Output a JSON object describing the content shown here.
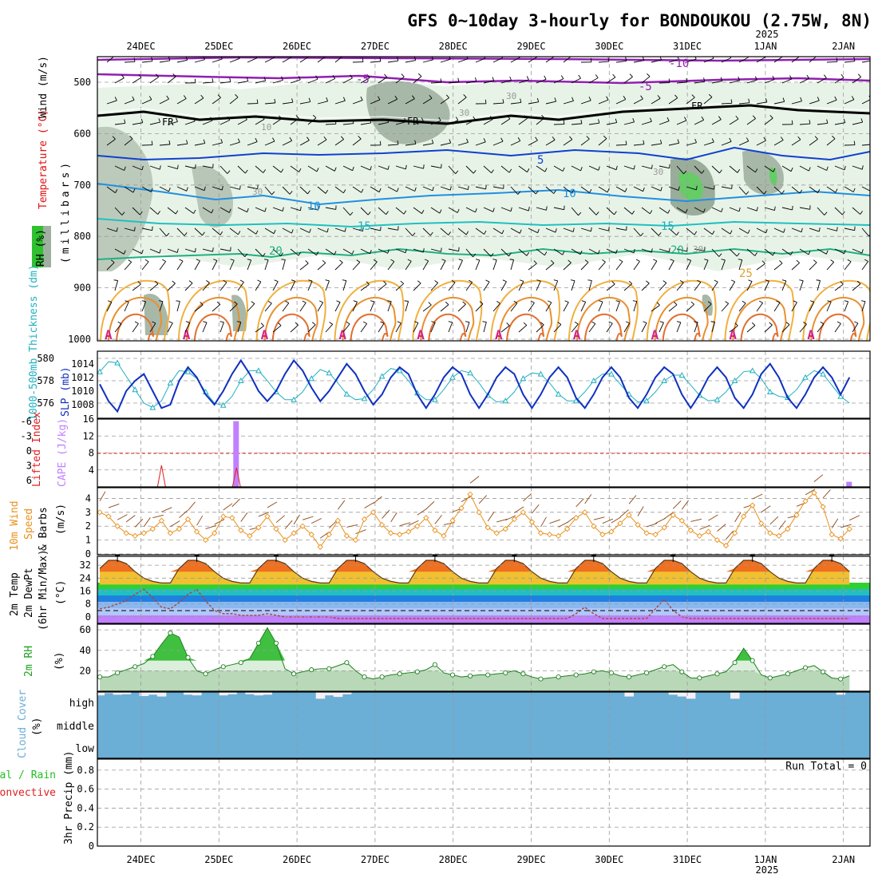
{
  "title": "GFS 0~10day 3-hourly for BONDOUKOU (2.75W, 8N)",
  "dates": [
    "24DEC",
    "25DEC",
    "26DEC",
    "27DEC",
    "28DEC",
    "29DEC",
    "30DEC",
    "31DEC",
    "1JAN",
    "2JAN"
  ],
  "year_label": "2025",
  "colors": {
    "wind_label": "#000000",
    "temperature_label": "#e01010",
    "rh_label": "#00a000",
    "thickness": "#20b0c0",
    "slp": "#1030c0",
    "lifted_index": "#e02020",
    "cape": "#c080ff",
    "wind10_speed": "#e8901a",
    "barbs": "#8b4513",
    "dewpoint": "#b04040",
    "rh2m": "#20a020",
    "cloud": "#6baed6",
    "cloud_gap": "#f4f0f8",
    "precip_total": "#20c020",
    "precip_conv": "#e02020"
  },
  "panels": {
    "upper_air": {
      "ylabels": {
        "wind": "Wind (m/s)",
        "temperature": "Temperature (°C)",
        "rh": "RH (%)",
        "pressure": "(millibars)"
      },
      "pressure_ticks": [
        "500",
        "600",
        "700",
        "800",
        "900",
        "1000"
      ],
      "temp_contour_labels": [
        "-10",
        "-5",
        "-5",
        "FR",
        "FR",
        "FR",
        "5",
        "10",
        "10",
        "15",
        "15",
        "20",
        "20",
        "25",
        "30",
        "30",
        "30",
        "30",
        "30",
        "10"
      ]
    },
    "thickness_slp": {
      "ylabels": {
        "thickness": "1000-500mb Thickness (dm)",
        "slp": "SLP (mb)"
      },
      "thickness_ticks": [
        "580",
        "578",
        "576"
      ],
      "slp_ticks": [
        "1014",
        "1012",
        "1010",
        "1008"
      ]
    },
    "cape_li": {
      "ylabels": {
        "li": "Lifted Index",
        "cape": "CAPE (J/kg)"
      },
      "li_ticks": [
        "-6",
        "-3",
        "0",
        "3",
        "6"
      ],
      "cape_ticks": [
        "16",
        "12",
        "8",
        "4"
      ]
    },
    "wind10": {
      "ylabels": {
        "a": "10m Wind",
        "b": "Speed",
        "c": "& Barbs",
        "d": "(m/s)"
      },
      "ticks": [
        "4",
        "3",
        "2",
        "1",
        "0"
      ]
    },
    "temp2m": {
      "ylabels": {
        "a": "2m Temp",
        "b": "2m DewPt",
        "c": "(6hr Min/Max)",
        "d": "(°C)"
      },
      "ticks": [
        "32",
        "24",
        "16",
        "8",
        "0"
      ]
    },
    "rh2m": {
      "ylabels": {
        "a": "2m RH",
        "b": "(%)"
      },
      "ticks": [
        "60",
        "40",
        "20"
      ]
    },
    "cloud": {
      "ylabels": {
        "a": "Cloud Cover",
        "b": "(%)"
      },
      "ticks": [
        "high",
        "middle",
        "low"
      ]
    },
    "precip": {
      "ylabels": {
        "a": "Total / Rain",
        "b": "Convective",
        "c": "3hr Precip (mm)"
      },
      "ticks": [
        "0.8",
        "0.6",
        "0.4",
        "0.2",
        "0"
      ],
      "run_total": "Run Total = 0"
    }
  },
  "chart_data": [
    {
      "type": "line",
      "name": "thickness_slp",
      "x_unit": "hours from 23DEC 12Z (3-hourly)",
      "series": [
        {
          "name": "1000-500mb Thickness (dm)",
          "values": [
            578.8,
            579.7,
            579.6,
            578.4,
            577.2,
            576.0,
            575.6,
            576.2,
            577.8,
            578.9,
            578.8,
            578.2,
            577.0,
            576.0,
            575.8,
            576.6,
            578.0,
            578.9,
            578.9,
            578.0,
            577.0,
            576.3,
            576.3,
            577.0,
            578.2,
            579.0,
            578.7,
            577.8,
            576.8,
            576.3,
            576.4,
            577.2,
            578.4,
            579.1,
            578.9,
            578.0,
            576.9,
            576.3,
            576.3,
            577.2,
            578.3,
            578.9,
            578.7,
            577.8,
            576.7,
            576.1,
            576.2,
            577.0,
            578.2,
            578.7,
            578.6,
            577.8,
            576.8,
            576.2,
            576.2,
            577.0,
            578.0,
            578.6,
            578.6,
            577.7,
            576.8,
            576.1,
            576.2,
            577.0,
            578.0,
            578.5,
            578.5,
            577.6,
            576.7,
            576.2,
            576.3,
            577.0,
            578.0,
            578.8,
            578.9,
            578.2,
            577.0,
            576.6,
            576.5,
            577.2,
            578.3,
            578.9,
            578.6,
            577.6,
            576.6,
            576.0
          ]
        },
        {
          "name": "SLP (mb)",
          "values": [
            1011.0,
            1008.5,
            1007.0,
            1010.0,
            1011.5,
            1012.5,
            1010.0,
            1007.5,
            1008.0,
            1011.5,
            1013.5,
            1012.0,
            1009.5,
            1008.0,
            1010.0,
            1012.5,
            1014.5,
            1012.5,
            1010.0,
            1008.5,
            1010.0,
            1012.5,
            1014.5,
            1013.0,
            1010.5,
            1008.5,
            1010.0,
            1012.0,
            1014.0,
            1012.5,
            1010.0,
            1008.0,
            1009.5,
            1012.0,
            1013.5,
            1012.5,
            1009.5,
            1007.5,
            1009.5,
            1012.0,
            1013.5,
            1012.5,
            1009.5,
            1007.5,
            1009.5,
            1012.0,
            1013.5,
            1012.5,
            1009.5,
            1007.5,
            1009.5,
            1012.0,
            1013.5,
            1012.0,
            1009.0,
            1007.5,
            1009.5,
            1012.0,
            1013.5,
            1012.0,
            1009.0,
            1007.5,
            1009.5,
            1012.0,
            1013.5,
            1012.5,
            1009.5,
            1007.5,
            1009.5,
            1012.0,
            1013.5,
            1012.0,
            1009.0,
            1007.5,
            1009.5,
            1012.5,
            1014.0,
            1012.0,
            1009.0,
            1007.5,
            1009.5,
            1012.0,
            1013.5,
            1012.0,
            1009.5,
            1012.0
          ]
        }
      ]
    },
    {
      "type": "bar",
      "name": "cape_li",
      "ylabel": "CAPE (J/kg)",
      "ylim": [
        0,
        16
      ],
      "series": [
        {
          "name": "CAPE (J/kg)",
          "points": [
            [
              15.5,
              15.5
            ],
            [
              85,
              1.2
            ]
          ]
        },
        {
          "name": "Lifted Index",
          "points": [
            [
              7,
              4.5
            ],
            [
              15.5,
              4.0
            ]
          ]
        }
      ]
    },
    {
      "type": "line",
      "name": "wind10",
      "ylabel": "(m/s)",
      "ylim": [
        0,
        4.6
      ],
      "x_unit": "hours from 23DEC 12Z (3-hourly)",
      "values": [
        3.0,
        2.7,
        2.0,
        1.5,
        1.3,
        1.5,
        1.8,
        2.4,
        1.5,
        1.8,
        2.5,
        1.6,
        1.0,
        1.5,
        2.7,
        2.6,
        1.7,
        1.3,
        1.9,
        2.7,
        1.8,
        1.0,
        1.5,
        2.0,
        1.4,
        0.5,
        1.4,
        2.4,
        1.3,
        1.0,
        2.5,
        3.0,
        2.1,
        1.5,
        1.4,
        1.6,
        2.0,
        2.6,
        1.7,
        1.3,
        2.4,
        3.3,
        4.3,
        3.0,
        1.9,
        1.5,
        1.8,
        2.5,
        3.0,
        2.3,
        1.5,
        1.4,
        1.3,
        1.8,
        2.6,
        3.0,
        2.0,
        1.4,
        1.6,
        2.2,
        2.8,
        2.1,
        1.5,
        1.4,
        1.9,
        2.8,
        2.4,
        1.7,
        1.3,
        1.6,
        1.0,
        0.6,
        1.5,
        2.7,
        3.5,
        2.2,
        1.5,
        1.3,
        1.8,
        2.8,
        3.8,
        4.4,
        3.4,
        1.4,
        1.1,
        1.8
      ]
    },
    {
      "type": "line",
      "name": "temp2m",
      "ylabel": "(°C)",
      "ylim": [
        -3,
        36
      ],
      "series": [
        {
          "name": "2m Temp",
          "values": [
            30,
            35,
            35,
            33,
            28,
            24,
            22,
            21,
            21,
            30,
            35,
            35,
            33,
            28,
            24,
            22,
            21,
            21,
            30,
            35,
            35,
            33,
            28,
            24,
            22,
            21,
            21,
            30,
            35,
            35,
            33,
            28,
            24,
            22,
            21,
            21,
            30,
            35,
            35,
            33,
            28,
            24,
            22,
            21,
            21,
            30,
            35,
            35,
            33,
            28,
            24,
            22,
            21,
            21,
            30,
            35,
            35,
            33,
            28,
            24,
            22,
            21,
            21,
            30,
            35,
            35,
            33,
            28,
            24,
            22,
            21,
            21,
            30,
            35,
            35,
            33,
            28,
            24,
            22,
            21,
            21,
            30,
            35,
            35,
            33,
            28
          ]
        },
        {
          "name": "2m DewPt",
          "values": [
            5,
            6,
            8,
            10,
            14,
            17,
            12,
            6,
            5,
            9,
            14,
            17,
            10,
            4,
            2,
            2,
            1,
            1,
            1,
            2,
            1,
            0,
            0,
            0,
            0,
            0,
            0,
            -1,
            -1,
            -1,
            -1,
            -1,
            -1,
            -1,
            -1,
            -1,
            -1,
            -1,
            -1,
            -1,
            -1,
            -1,
            -1,
            -1,
            -1,
            -1,
            -1,
            -1,
            -1,
            -1,
            -1,
            -1,
            -1,
            -1,
            2,
            6,
            2,
            -1,
            -1,
            -1,
            -1,
            -1,
            -1,
            5,
            11,
            4,
            0,
            -1,
            -1,
            -1,
            -1,
            -1,
            -1,
            -1,
            -1,
            -1,
            -1,
            -1,
            -1,
            -1,
            -1,
            -1,
            -1,
            -1,
            -1,
            -1
          ]
        }
      ]
    },
    {
      "type": "area",
      "name": "rh2m",
      "ylabel": "(%)",
      "ylim": [
        0,
        64
      ],
      "x_unit": "hours from 23DEC 12Z (3-hourly)",
      "values": [
        14,
        14,
        18,
        21,
        24,
        27,
        34,
        46,
        57,
        53,
        33,
        20,
        17,
        21,
        24,
        26,
        28,
        32,
        47,
        62,
        47,
        22,
        17,
        19,
        21,
        22,
        22,
        25,
        28,
        20,
        14,
        12,
        14,
        16,
        17,
        18,
        19,
        21,
        26,
        18,
        16,
        14,
        15,
        16,
        16,
        17,
        18,
        20,
        17,
        14,
        12,
        13,
        14,
        15,
        16,
        17,
        19,
        20,
        18,
        15,
        14,
        16,
        18,
        21,
        24,
        26,
        19,
        13,
        13,
        15,
        17,
        19,
        28,
        42,
        30,
        16,
        13,
        15,
        17,
        20,
        23,
        25,
        19,
        13,
        12,
        15
      ]
    },
    {
      "type": "bar",
      "name": "cloud_cover",
      "ylabel": "(%)",
      "ylim": [
        0,
        100
      ],
      "series": [
        {
          "name": "high",
          "values": [
            85,
            95,
            88,
            90,
            100,
            82,
            88,
            80,
            100,
            100,
            88,
            85,
            100,
            100,
            85,
            90,
            100,
            90,
            85,
            88,
            100,
            100,
            100,
            100,
            100,
            70,
            85,
            78,
            90,
            100,
            100,
            100,
            100,
            100,
            100,
            100,
            100,
            100,
            100,
            100,
            100,
            100,
            100,
            100,
            100,
            100,
            100,
            100,
            100,
            100,
            100,
            100,
            100,
            100,
            100,
            100,
            100,
            100,
            100,
            100,
            80,
            100,
            100,
            100,
            100,
            88,
            80,
            70,
            100,
            100,
            100,
            100,
            70,
            100,
            100,
            100,
            100,
            100,
            100,
            100,
            100,
            100,
            100,
            100,
            88,
            100
          ]
        },
        {
          "name": "middle",
          "values": [
            100,
            100,
            100,
            100,
            100,
            100,
            100,
            100,
            100,
            100,
            100,
            100,
            100,
            100,
            100,
            100,
            100,
            100,
            100,
            100,
            100,
            100,
            100,
            100,
            100,
            100,
            100,
            100,
            100,
            100,
            100,
            100,
            100,
            100,
            100,
            100,
            100,
            100,
            100,
            100,
            100,
            100,
            100,
            100,
            100,
            100,
            100,
            100,
            100,
            100,
            100,
            100,
            100,
            100,
            100,
            100,
            100,
            100,
            100,
            100,
            100,
            100,
            100,
            100,
            100,
            100,
            100,
            100,
            100,
            100,
            100,
            100,
            100,
            100,
            100,
            100,
            100,
            100,
            100,
            100,
            100,
            100,
            100,
            100,
            100,
            100
          ]
        },
        {
          "name": "low",
          "values": [
            100,
            100,
            100,
            100,
            100,
            100,
            100,
            100,
            100,
            100,
            100,
            100,
            100,
            100,
            100,
            100,
            100,
            100,
            100,
            100,
            100,
            100,
            100,
            100,
            100,
            100,
            100,
            100,
            100,
            100,
            100,
            100,
            100,
            100,
            100,
            100,
            100,
            100,
            100,
            100,
            100,
            100,
            100,
            100,
            100,
            100,
            100,
            100,
            100,
            100,
            100,
            100,
            100,
            100,
            100,
            100,
            100,
            100,
            100,
            100,
            100,
            100,
            100,
            100,
            100,
            100,
            100,
            100,
            100,
            100,
            100,
            100,
            100,
            100,
            100,
            100,
            100,
            100,
            100,
            100,
            100,
            100,
            100,
            100,
            100,
            100
          ]
        }
      ]
    },
    {
      "type": "bar",
      "name": "precip",
      "ylabel": "3hr Precip (mm)",
      "ylim": [
        0,
        0.9
      ],
      "values": [
        0,
        0,
        0,
        0,
        0,
        0,
        0,
        0,
        0,
        0,
        0,
        0,
        0,
        0,
        0,
        0,
        0,
        0,
        0,
        0,
        0,
        0,
        0,
        0,
        0,
        0,
        0,
        0,
        0,
        0,
        0,
        0,
        0,
        0,
        0,
        0,
        0,
        0,
        0,
        0,
        0,
        0,
        0,
        0,
        0,
        0,
        0,
        0,
        0,
        0,
        0,
        0,
        0,
        0,
        0,
        0,
        0,
        0,
        0,
        0,
        0,
        0,
        0,
        0,
        0,
        0,
        0,
        0,
        0,
        0,
        0,
        0,
        0,
        0,
        0,
        0,
        0,
        0,
        0,
        0,
        0,
        0,
        0,
        0,
        0,
        0
      ]
    }
  ]
}
